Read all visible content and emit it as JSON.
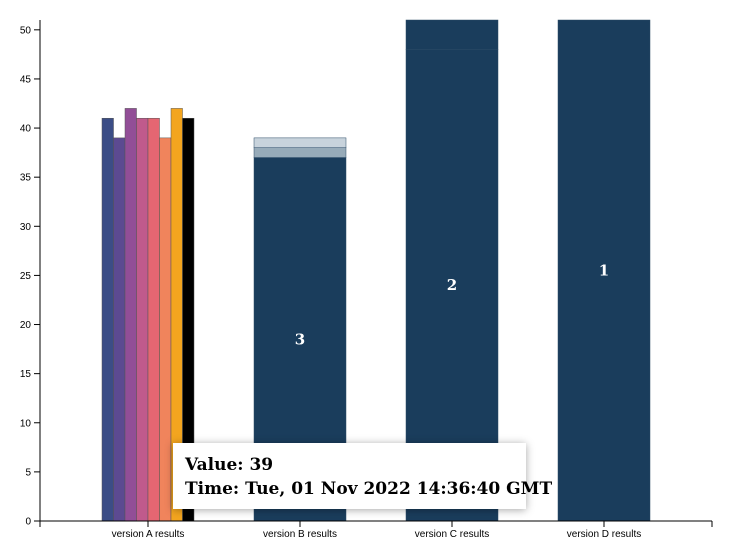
{
  "chart_data": {
    "type": "bar",
    "categories": [
      "version A results",
      "version B results",
      "version C results",
      "version D results"
    ],
    "ylim": [
      0,
      51
    ],
    "yticks": [
      0,
      5,
      10,
      15,
      20,
      25,
      30,
      35,
      40,
      45,
      50
    ],
    "grid": false,
    "groups": [
      {
        "category": "version A results",
        "layout": "grouped",
        "values": [
          41,
          39,
          42,
          41,
          41,
          39,
          42,
          41
        ],
        "colors": [
          "#3b4d86",
          "#5c4a91",
          "#924e97",
          "#c05a8c",
          "#e56672",
          "#f0845c",
          "#f3a51f",
          "#000000"
        ]
      },
      {
        "category": "version B results",
        "layout": "stacked",
        "segments": [
          {
            "value": 37,
            "color": "#1a3d5c",
            "label": "3"
          },
          {
            "value": 1,
            "color": "#97abb9",
            "label": ""
          },
          {
            "value": 1,
            "color": "#c8d3dc",
            "label": ""
          }
        ]
      },
      {
        "category": "version C results",
        "layout": "stacked",
        "segments": [
          {
            "value": 48,
            "color": "#1a3d5c",
            "label": "2"
          },
          {
            "value": 3,
            "color": "#1a3d5c",
            "label": ""
          }
        ]
      },
      {
        "category": "version D results",
        "layout": "stacked",
        "segments": [
          {
            "value": 51,
            "color": "#1a3d5c",
            "label": "1"
          }
        ]
      }
    ]
  },
  "tooltip": {
    "value_line": "Value: 39",
    "time_line": "Time: Tue, 01 Nov 2022 14:36:40 GMT"
  }
}
